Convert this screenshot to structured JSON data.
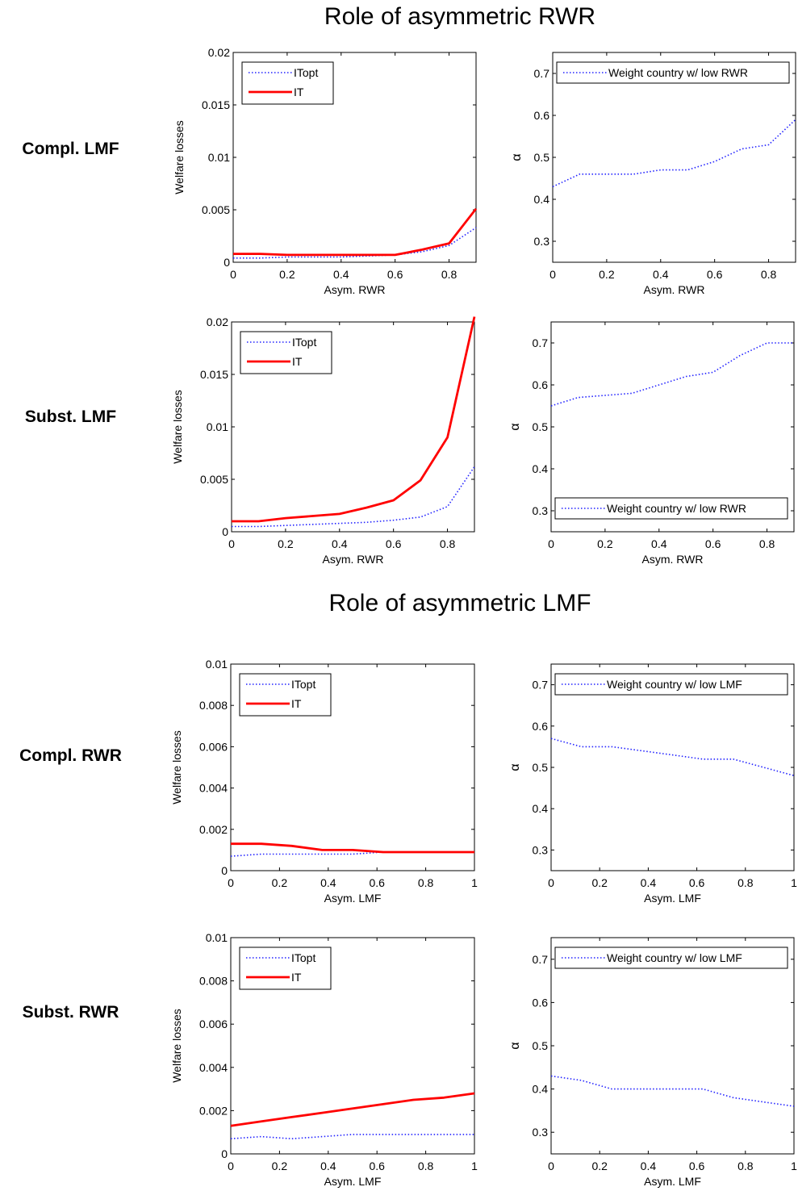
{
  "sections": [
    {
      "title": "Role of asymmetric RWR"
    },
    {
      "title": "Role of asymmetric LMF"
    }
  ],
  "row_labels": [
    "Compl. LMF",
    "Subst. LMF",
    "Compl. RWR",
    "Subst. RWR"
  ],
  "chart_data": [
    {
      "type": "line",
      "xlabel": "Asym. RWR",
      "ylabel": "Welfare losses",
      "xlim": [
        0,
        0.9
      ],
      "ylim": [
        0,
        0.02
      ],
      "xticks": [
        0,
        0.2,
        0.4,
        0.6,
        0.8
      ],
      "yticks": [
        0,
        0.005,
        0.01,
        0.015,
        0.02
      ],
      "xtick_labels": [
        "0",
        "0.2",
        "0.4",
        "0.6",
        "0.8"
      ],
      "ytick_labels": [
        "0",
        "0.005",
        "0.01",
        "0.015",
        "0.02"
      ],
      "legend": "top-left",
      "x": [
        0,
        0.1,
        0.2,
        0.3,
        0.4,
        0.5,
        0.6,
        0.7,
        0.8,
        0.9
      ],
      "series": [
        {
          "name": "ITopt",
          "style": "dotted",
          "color": "#2222ff",
          "values": [
            0.0004,
            0.0004,
            0.0005,
            0.0005,
            0.0005,
            0.0006,
            0.0007,
            0.001,
            0.0016,
            0.0033
          ]
        },
        {
          "name": "IT",
          "style": "solid",
          "color": "#ff0000",
          "values": [
            0.0008,
            0.0008,
            0.0007,
            0.0007,
            0.0007,
            0.0007,
            0.0007,
            0.0012,
            0.0018,
            0.0051
          ]
        }
      ]
    },
    {
      "type": "line",
      "xlabel": "Asym. RWR",
      "ylabel": "α",
      "xlim": [
        0,
        0.9
      ],
      "ylim": [
        0.25,
        0.75
      ],
      "xticks": [
        0,
        0.2,
        0.4,
        0.6,
        0.8
      ],
      "yticks": [
        0.3,
        0.4,
        0.5,
        0.6,
        0.7
      ],
      "xtick_labels": [
        "0",
        "0.2",
        "0.4",
        "0.6",
        "0.8"
      ],
      "ytick_labels": [
        "0.3",
        "0.4",
        "0.5",
        "0.6",
        "0.7"
      ],
      "legend": "top-right",
      "x": [
        0,
        0.1,
        0.2,
        0.3,
        0.4,
        0.5,
        0.6,
        0.7,
        0.8,
        0.9
      ],
      "series": [
        {
          "name": "Weight country w/ low RWR",
          "style": "dotted",
          "color": "#2222ff",
          "values": [
            0.43,
            0.46,
            0.46,
            0.46,
            0.47,
            0.47,
            0.49,
            0.52,
            0.53,
            0.59
          ]
        }
      ]
    },
    {
      "type": "line",
      "xlabel": "Asym. RWR",
      "ylabel": "Welfare losses",
      "xlim": [
        0,
        0.9
      ],
      "ylim": [
        0,
        0.02
      ],
      "xticks": [
        0,
        0.2,
        0.4,
        0.6,
        0.8
      ],
      "yticks": [
        0,
        0.005,
        0.01,
        0.015,
        0.02
      ],
      "xtick_labels": [
        "0",
        "0.2",
        "0.4",
        "0.6",
        "0.8"
      ],
      "ytick_labels": [
        "0",
        "0.005",
        "0.01",
        "0.015",
        "0.02"
      ],
      "legend": "top-left",
      "x": [
        0,
        0.1,
        0.2,
        0.3,
        0.4,
        0.5,
        0.6,
        0.7,
        0.8,
        0.9
      ],
      "series": [
        {
          "name": "ITopt",
          "style": "dotted",
          "color": "#2222ff",
          "values": [
            0.0005,
            0.0005,
            0.0006,
            0.0007,
            0.0008,
            0.0009,
            0.0011,
            0.0014,
            0.0024,
            0.0062
          ]
        },
        {
          "name": "IT",
          "style": "solid",
          "color": "#ff0000",
          "values": [
            0.001,
            0.001,
            0.0013,
            0.0015,
            0.0017,
            0.0023,
            0.003,
            0.0049,
            0.009,
            0.0205
          ]
        }
      ]
    },
    {
      "type": "line",
      "xlabel": "Asym. RWR",
      "ylabel": "α",
      "xlim": [
        0,
        0.9
      ],
      "ylim": [
        0.25,
        0.75
      ],
      "xticks": [
        0,
        0.2,
        0.4,
        0.6,
        0.8
      ],
      "yticks": [
        0.3,
        0.4,
        0.5,
        0.6,
        0.7
      ],
      "xtick_labels": [
        "0",
        "0.2",
        "0.4",
        "0.6",
        "0.8"
      ],
      "ytick_labels": [
        "0.3",
        "0.4",
        "0.5",
        "0.6",
        "0.7"
      ],
      "legend": "bottom-right",
      "x": [
        0,
        0.1,
        0.2,
        0.3,
        0.4,
        0.5,
        0.6,
        0.7,
        0.8,
        0.9
      ],
      "series": [
        {
          "name": "Weight country w/ low RWR",
          "style": "dotted",
          "color": "#2222ff",
          "values": [
            0.55,
            0.57,
            0.575,
            0.58,
            0.6,
            0.62,
            0.63,
            0.67,
            0.7,
            0.7
          ]
        }
      ]
    },
    {
      "type": "line",
      "xlabel": "Asym. LMF",
      "ylabel": "Welfare losses",
      "xlim": [
        0,
        1
      ],
      "ylim": [
        0,
        0.01
      ],
      "xticks": [
        0,
        0.2,
        0.4,
        0.6,
        0.8,
        1
      ],
      "yticks": [
        0,
        0.002,
        0.004,
        0.006,
        0.008,
        0.01
      ],
      "xtick_labels": [
        "0",
        "0.2",
        "0.4",
        "0.6",
        "0.8",
        "1"
      ],
      "ytick_labels": [
        "0",
        "0.002",
        "0.004",
        "0.006",
        "0.008",
        "0.01"
      ],
      "legend": "top-left",
      "x": [
        0,
        0.125,
        0.25,
        0.375,
        0.5,
        0.625,
        0.75,
        0.875,
        1
      ],
      "series": [
        {
          "name": "ITopt",
          "style": "dotted",
          "color": "#2222ff",
          "values": [
            0.0007,
            0.0008,
            0.0008,
            0.0008,
            0.0008,
            0.0009,
            0.0009,
            0.0009,
            0.0009
          ]
        },
        {
          "name": "IT",
          "style": "solid",
          "color": "#ff0000",
          "values": [
            0.0013,
            0.0013,
            0.0012,
            0.001,
            0.001,
            0.0009,
            0.0009,
            0.0009,
            0.0009
          ]
        }
      ]
    },
    {
      "type": "line",
      "xlabel": "Asym. LMF",
      "ylabel": "α",
      "xlim": [
        0,
        1
      ],
      "ylim": [
        0.25,
        0.75
      ],
      "xticks": [
        0,
        0.2,
        0.4,
        0.6,
        0.8,
        1
      ],
      "yticks": [
        0.3,
        0.4,
        0.5,
        0.6,
        0.7
      ],
      "xtick_labels": [
        "0",
        "0.2",
        "0.4",
        "0.6",
        "0.8",
        "1"
      ],
      "ytick_labels": [
        "0.3",
        "0.4",
        "0.5",
        "0.6",
        "0.7"
      ],
      "legend": "top-right",
      "x": [
        0,
        0.125,
        0.25,
        0.375,
        0.5,
        0.625,
        0.75,
        0.875,
        1
      ],
      "series": [
        {
          "name": "Weight country w/ low LMF",
          "style": "dotted",
          "color": "#2222ff",
          "values": [
            0.57,
            0.55,
            0.55,
            0.54,
            0.53,
            0.52,
            0.52,
            0.5,
            0.48
          ]
        }
      ]
    },
    {
      "type": "line",
      "xlabel": "Asym. LMF",
      "ylabel": "Welfare losses",
      "xlim": [
        0,
        1
      ],
      "ylim": [
        0,
        0.01
      ],
      "xticks": [
        0,
        0.2,
        0.4,
        0.6,
        0.8,
        1
      ],
      "yticks": [
        0,
        0.002,
        0.004,
        0.006,
        0.008,
        0.01
      ],
      "xtick_labels": [
        "0",
        "0.2",
        "0.4",
        "0.6",
        "0.8",
        "1"
      ],
      "ytick_labels": [
        "0",
        "0.002",
        "0.004",
        "0.006",
        "0.008",
        "0.01"
      ],
      "legend": "top-left",
      "x": [
        0,
        0.125,
        0.25,
        0.375,
        0.5,
        0.625,
        0.75,
        0.875,
        1
      ],
      "series": [
        {
          "name": "ITopt",
          "style": "dotted",
          "color": "#2222ff",
          "values": [
            0.0007,
            0.0008,
            0.0007,
            0.0008,
            0.0009,
            0.0009,
            0.0009,
            0.0009,
            0.0009
          ]
        },
        {
          "name": "IT",
          "style": "solid",
          "color": "#ff0000",
          "values": [
            0.0013,
            0.0015,
            0.0017,
            0.0019,
            0.0021,
            0.0023,
            0.0025,
            0.0026,
            0.0028
          ]
        }
      ]
    },
    {
      "type": "line",
      "xlabel": "Asym. LMF",
      "ylabel": "α",
      "xlim": [
        0,
        1
      ],
      "ylim": [
        0.25,
        0.75
      ],
      "xticks": [
        0,
        0.2,
        0.4,
        0.6,
        0.8,
        1
      ],
      "yticks": [
        0.3,
        0.4,
        0.5,
        0.6,
        0.7
      ],
      "xtick_labels": [
        "0",
        "0.2",
        "0.4",
        "0.6",
        "0.8",
        "1"
      ],
      "ytick_labels": [
        "0.3",
        "0.4",
        "0.5",
        "0.6",
        "0.7"
      ],
      "legend": "top-right",
      "x": [
        0,
        0.125,
        0.25,
        0.375,
        0.5,
        0.625,
        0.75,
        0.875,
        1
      ],
      "series": [
        {
          "name": "Weight country w/ low LMF",
          "style": "dotted",
          "color": "#2222ff",
          "values": [
            0.43,
            0.42,
            0.4,
            0.4,
            0.4,
            0.4,
            0.38,
            0.37,
            0.36
          ]
        }
      ]
    }
  ]
}
